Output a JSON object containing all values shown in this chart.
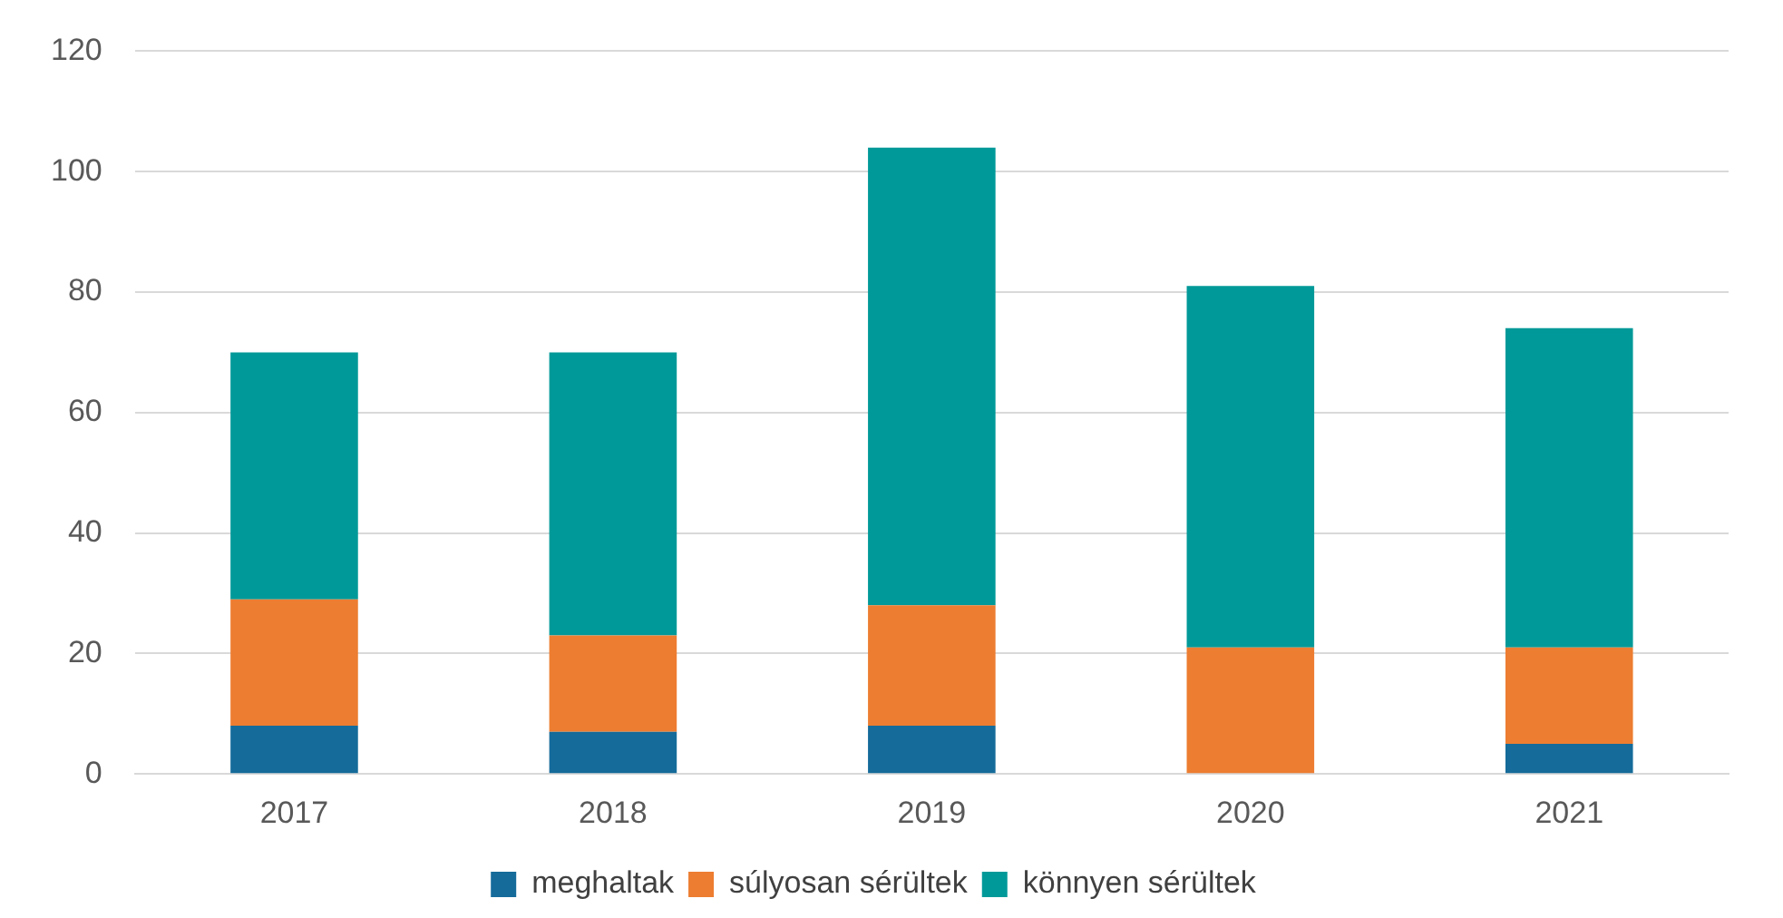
{
  "chart_data": {
    "type": "bar",
    "stacked": true,
    "categories": [
      "2017",
      "2018",
      "2019",
      "2020",
      "2021"
    ],
    "series": [
      {
        "name": "meghaltak",
        "color": "#156b9a",
        "values": [
          8,
          7,
          8,
          0,
          5
        ]
      },
      {
        "name": "súlyosan sérültek",
        "color": "#ed7d31",
        "values": [
          21,
          16,
          20,
          21,
          16
        ]
      },
      {
        "name": "könnyen sérültek",
        "color": "#009999",
        "values": [
          41,
          47,
          76,
          60,
          53
        ]
      }
    ],
    "ylim": [
      0,
      120
    ],
    "yticks": [
      0,
      20,
      40,
      60,
      80,
      100,
      120
    ],
    "grid": "y",
    "legend": "bottom"
  }
}
